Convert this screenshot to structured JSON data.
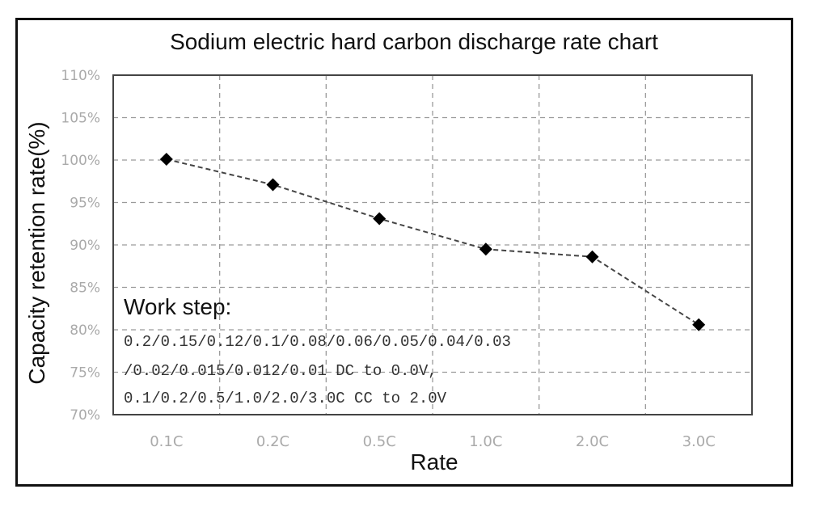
{
  "chart_data": {
    "type": "line",
    "title": "Sodium electric hard carbon discharge rate chart",
    "xlabel": "Rate",
    "ylabel": "Capacity retention rate(%)",
    "categories": [
      "0.1C",
      "0.2C",
      "0.5C",
      "1.0C",
      "2.0C",
      "3.0C"
    ],
    "y_ticks": [
      "110%",
      "105%",
      "100%",
      "95%",
      "90%",
      "85%",
      "80%",
      "75%",
      "70%"
    ],
    "ylim": [
      70,
      110
    ],
    "series": [
      {
        "values": [
          100.1,
          97.1,
          93.1,
          89.5,
          88.6,
          80.6
        ],
        "marker": "diamond",
        "line_style": "dashed"
      }
    ],
    "grid": true,
    "annotation": {
      "heading": "Work step:",
      "lines": [
        "0.2/0.15/0.12/0.1/0.08/0.06/0.05/0.04/0.03",
        "/0.02/0.015/0.012/0.01 DC to 0.0V,",
        "0.1/0.2/0.5/1.0/2.0/3.0C CC to 2.0V"
      ]
    },
    "colors": {
      "line": "#444444",
      "marker": "#000000",
      "grid": "#9a9a9a",
      "tick_text": "#aaaaaa"
    }
  }
}
